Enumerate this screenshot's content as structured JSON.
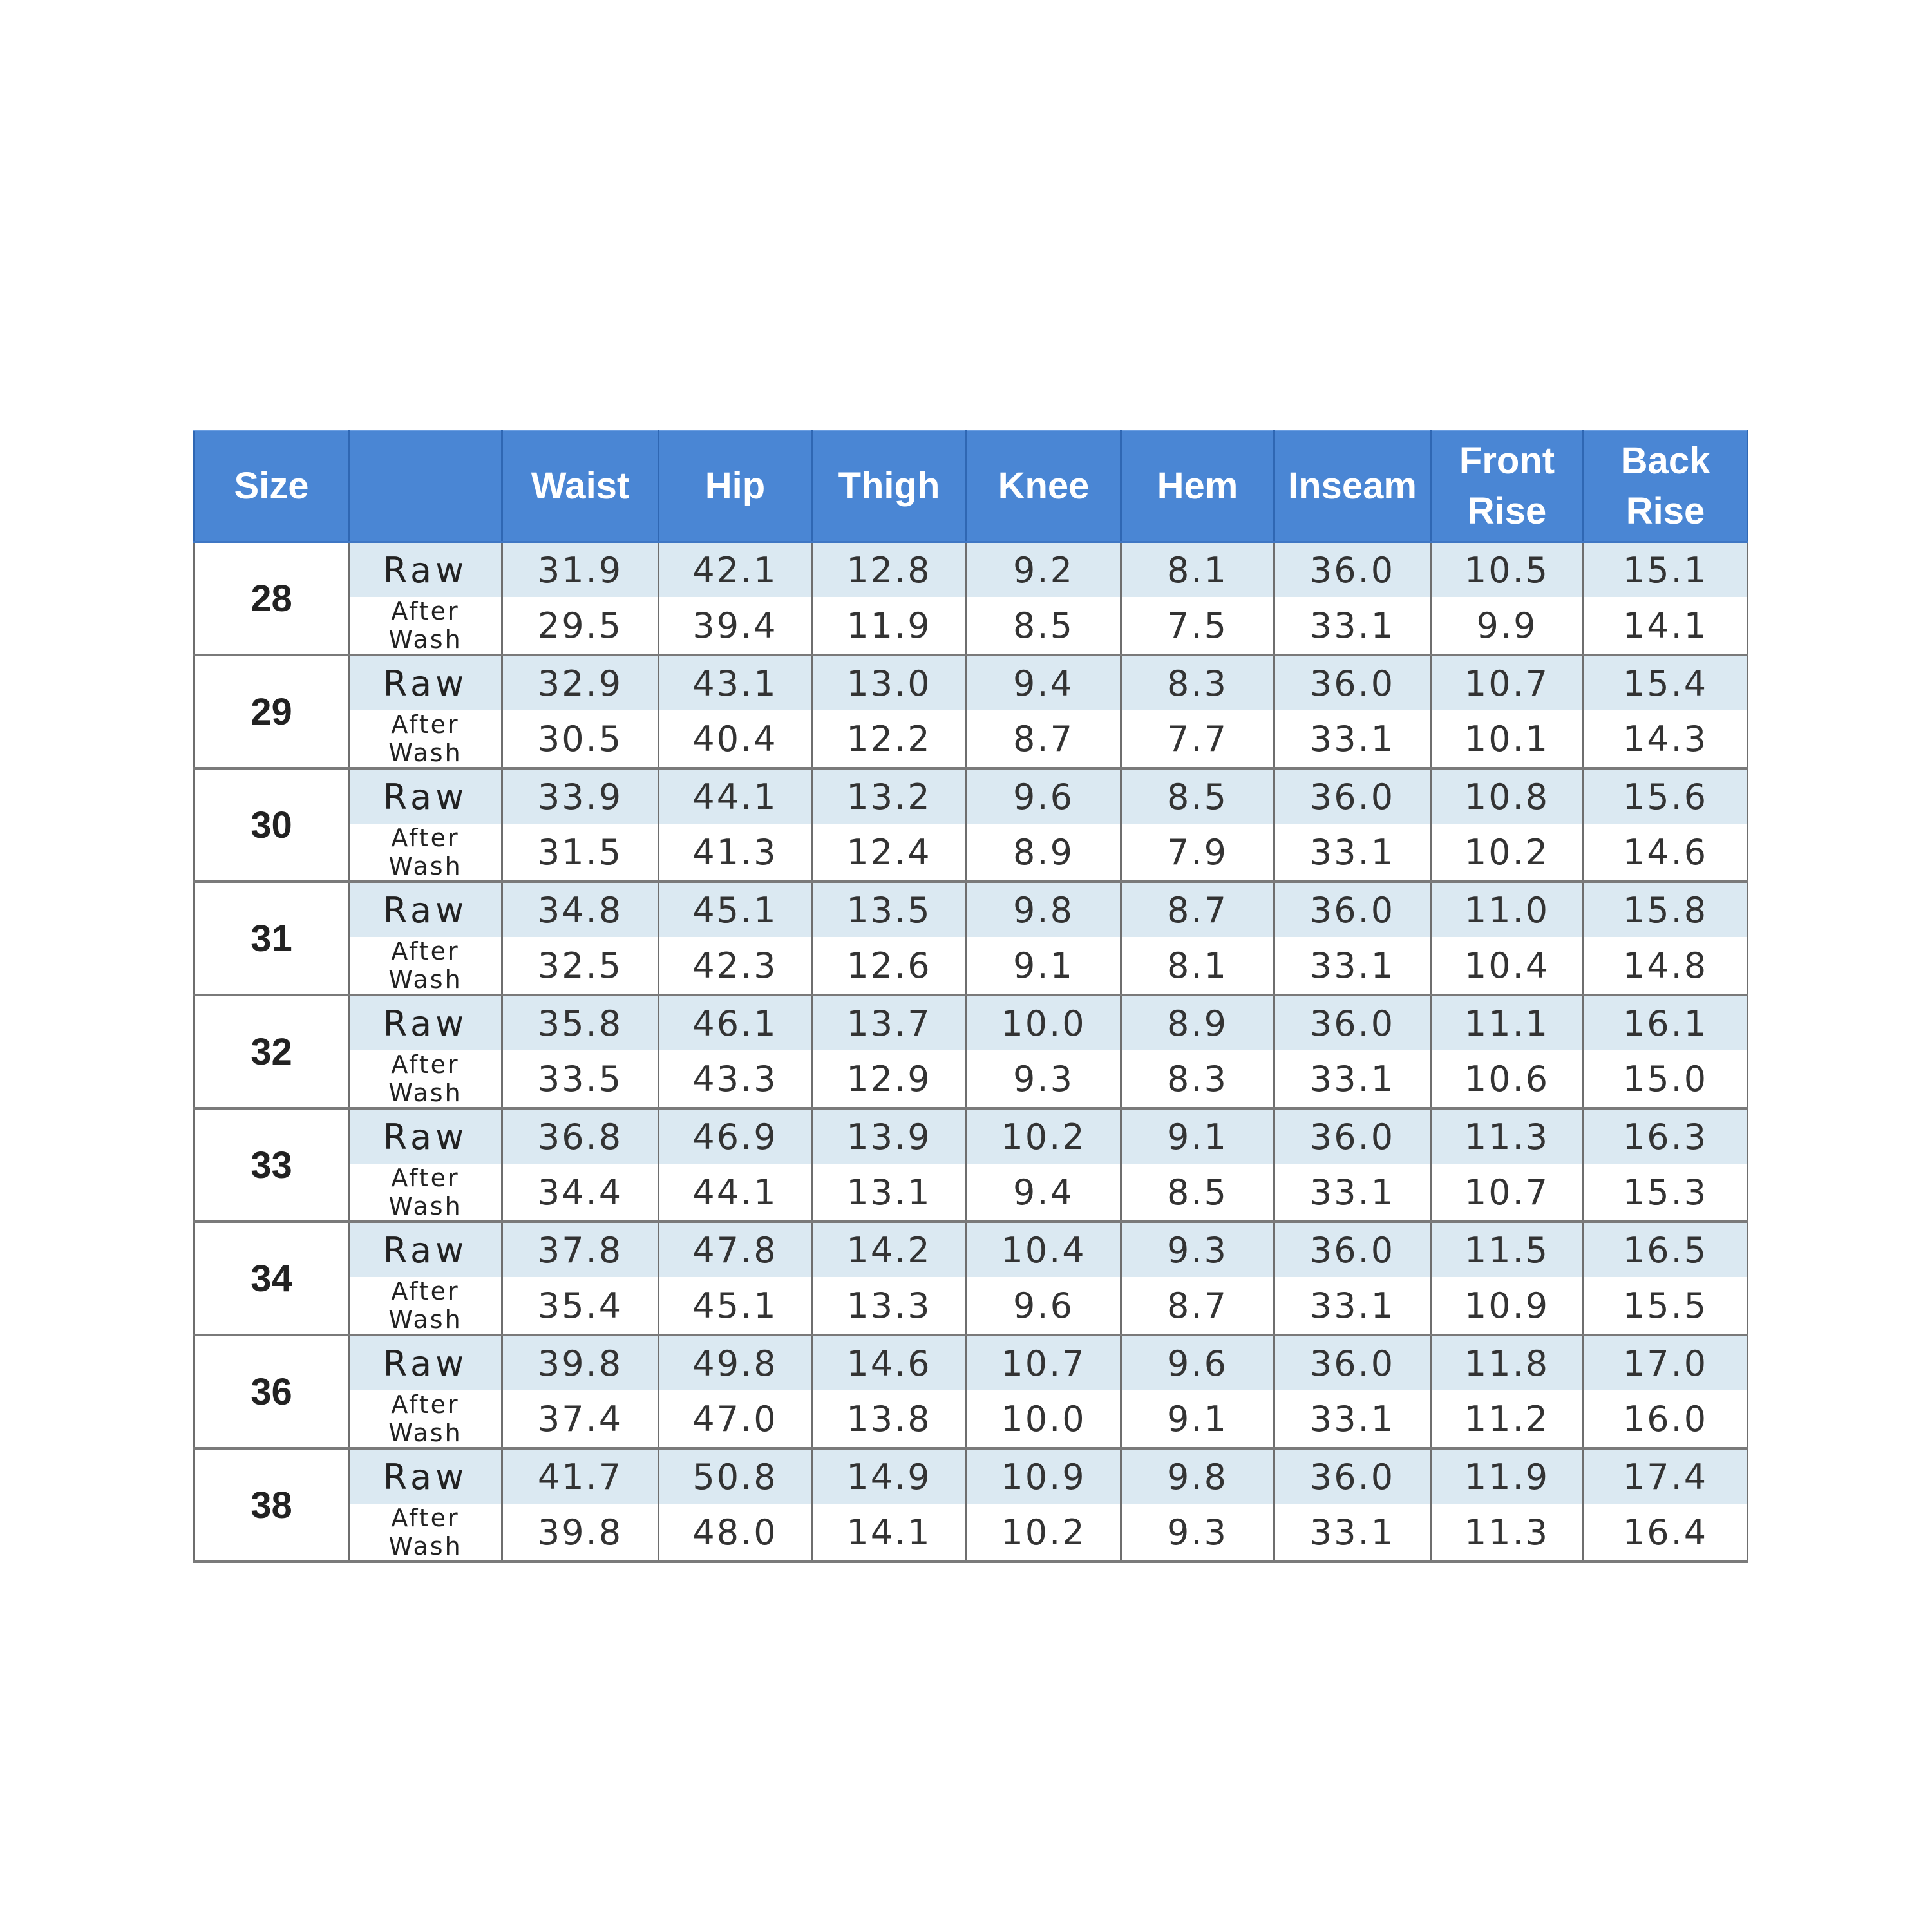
{
  "table": {
    "headers": [
      [
        "Size"
      ],
      [
        ""
      ],
      [
        "Waist"
      ],
      [
        "Hip"
      ],
      [
        "Thigh"
      ],
      [
        "Knee"
      ],
      [
        "Hem"
      ],
      [
        "Inseam"
      ],
      [
        "Front",
        "Rise"
      ],
      [
        "Back",
        "Rise"
      ]
    ],
    "raw_label": "Raw",
    "wash_label": "After Wash",
    "rows": [
      {
        "size": "28",
        "raw": [
          "31.9",
          "42.1",
          "12.8",
          "9.2",
          "8.1",
          "36.0",
          "10.5",
          "15.1"
        ],
        "after_wash": [
          "29.5",
          "39.4",
          "11.9",
          "8.5",
          "7.5",
          "33.1",
          "9.9",
          "14.1"
        ]
      },
      {
        "size": "29",
        "raw": [
          "32.9",
          "43.1",
          "13.0",
          "9.4",
          "8.3",
          "36.0",
          "10.7",
          "15.4"
        ],
        "after_wash": [
          "30.5",
          "40.4",
          "12.2",
          "8.7",
          "7.7",
          "33.1",
          "10.1",
          "14.3"
        ]
      },
      {
        "size": "30",
        "raw": [
          "33.9",
          "44.1",
          "13.2",
          "9.6",
          "8.5",
          "36.0",
          "10.8",
          "15.6"
        ],
        "after_wash": [
          "31.5",
          "41.3",
          "12.4",
          "8.9",
          "7.9",
          "33.1",
          "10.2",
          "14.6"
        ]
      },
      {
        "size": "31",
        "raw": [
          "34.8",
          "45.1",
          "13.5",
          "9.8",
          "8.7",
          "36.0",
          "11.0",
          "15.8"
        ],
        "after_wash": [
          "32.5",
          "42.3",
          "12.6",
          "9.1",
          "8.1",
          "33.1",
          "10.4",
          "14.8"
        ]
      },
      {
        "size": "32",
        "raw": [
          "35.8",
          "46.1",
          "13.7",
          "10.0",
          "8.9",
          "36.0",
          "11.1",
          "16.1"
        ],
        "after_wash": [
          "33.5",
          "43.3",
          "12.9",
          "9.3",
          "8.3",
          "33.1",
          "10.6",
          "15.0"
        ]
      },
      {
        "size": "33",
        "raw": [
          "36.8",
          "46.9",
          "13.9",
          "10.2",
          "9.1",
          "36.0",
          "11.3",
          "16.3"
        ],
        "after_wash": [
          "34.4",
          "44.1",
          "13.1",
          "9.4",
          "8.5",
          "33.1",
          "10.7",
          "15.3"
        ]
      },
      {
        "size": "34",
        "raw": [
          "37.8",
          "47.8",
          "14.2",
          "10.4",
          "9.3",
          "36.0",
          "11.5",
          "16.5"
        ],
        "after_wash": [
          "35.4",
          "45.1",
          "13.3",
          "9.6",
          "8.7",
          "33.1",
          "10.9",
          "15.5"
        ]
      },
      {
        "size": "36",
        "raw": [
          "39.8",
          "49.8",
          "14.6",
          "10.7",
          "9.6",
          "36.0",
          "11.8",
          "17.0"
        ],
        "after_wash": [
          "37.4",
          "47.0",
          "13.8",
          "10.0",
          "9.1",
          "33.1",
          "11.2",
          "16.0"
        ]
      },
      {
        "size": "38",
        "raw": [
          "41.7",
          "50.8",
          "14.9",
          "10.9",
          "9.8",
          "36.0",
          "11.9",
          "17.4"
        ],
        "after_wash": [
          "39.8",
          "48.0",
          "14.1",
          "10.2",
          "9.3",
          "33.1",
          "11.3",
          "16.4"
        ]
      }
    ],
    "colors": {
      "header_bg": "#4a86d4",
      "header_text": "#ffffff",
      "raw_row_bg": "#dbe9f2",
      "wash_row_bg": "#ffffff",
      "grid_line": "#7a7a7a"
    }
  }
}
